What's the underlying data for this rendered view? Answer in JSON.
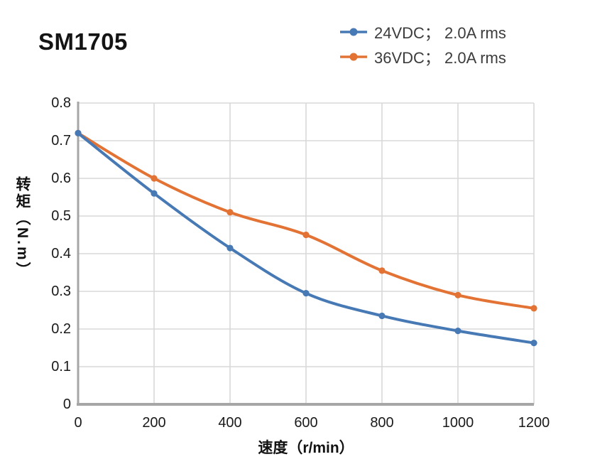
{
  "title": "SM1705",
  "legend": {
    "items": [
      {
        "label": "24VDC； 2.0A rms",
        "color": "#4779B5"
      },
      {
        "label": "36VDC； 2.0A rms",
        "color": "#E37334"
      }
    ]
  },
  "axis": {
    "x_title": "速度（r/min）",
    "y_title": "转矩（N.m）"
  },
  "chart_data": {
    "type": "line",
    "title": "SM1705",
    "xlabel": "速度（r/min）",
    "ylabel": "转矩（N.m）",
    "x": [
      0,
      200,
      400,
      600,
      800,
      1000,
      1200
    ],
    "series": [
      {
        "name": "24VDC； 2.0A rms",
        "color": "#4779B5",
        "values": [
          0.72,
          0.56,
          0.415,
          0.295,
          0.235,
          0.195,
          0.163
        ]
      },
      {
        "name": "36VDC； 2.0A rms",
        "color": "#E37334",
        "values": [
          0.72,
          0.6,
          0.51,
          0.45,
          0.355,
          0.29,
          0.255
        ]
      }
    ],
    "xlim": [
      0,
      1200
    ],
    "ylim": [
      0,
      0.8
    ],
    "x_tick_labels": [
      "0",
      "200",
      "400",
      "600",
      "800",
      "1000",
      "1200"
    ],
    "y_tick_labels": [
      "0.8",
      "0.7",
      "0.6",
      "0.5",
      "0.4",
      "0.3",
      "0.2",
      "0.1",
      "0"
    ],
    "grid": true,
    "smooth": true,
    "legend_position": "top-right",
    "grid_color": "#D8D8D8",
    "axis_color": "#A6A6A6",
    "marker": "circle"
  }
}
